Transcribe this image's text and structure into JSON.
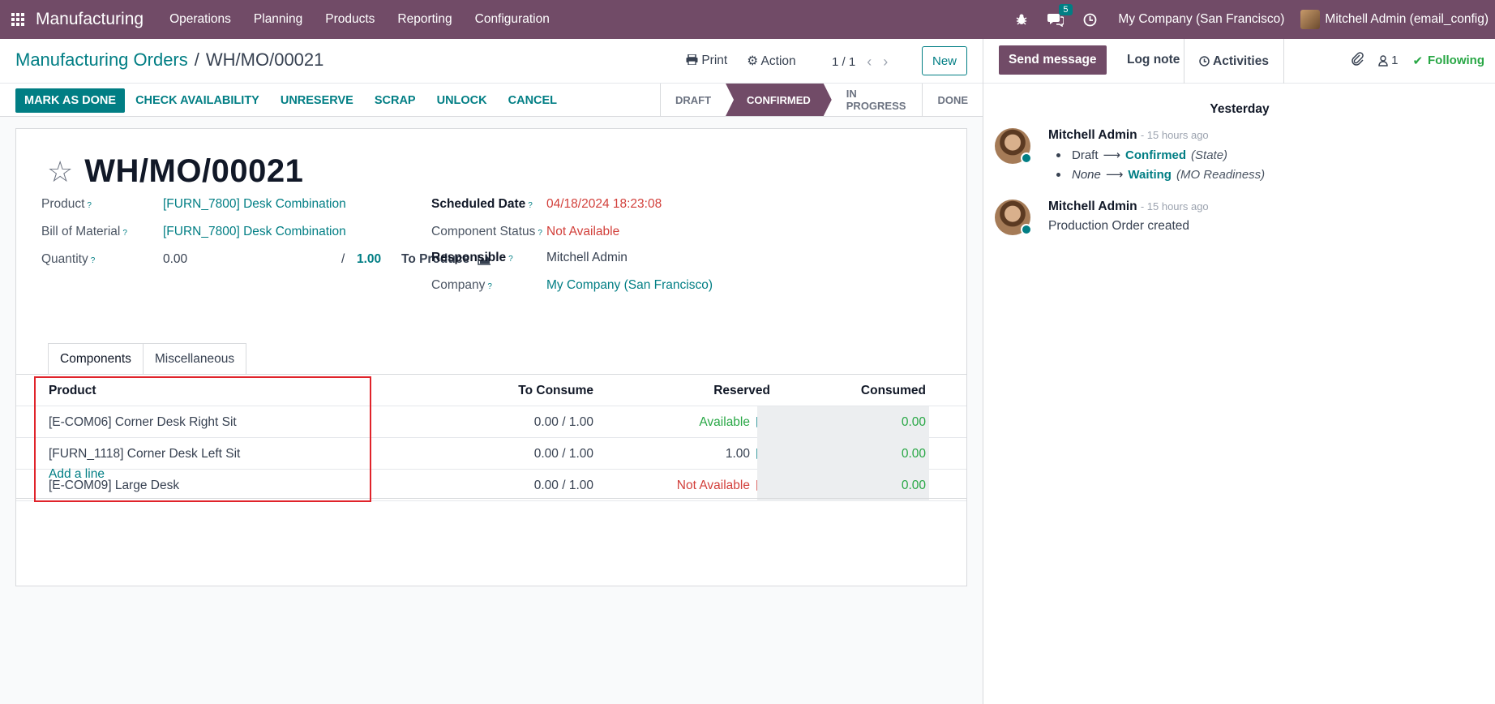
{
  "navbar": {
    "app_name": "Manufacturing",
    "menu": [
      "Operations",
      "Planning",
      "Products",
      "Reporting",
      "Configuration"
    ],
    "message_count": "5",
    "company": "My Company (San Francisco)",
    "user": "Mitchell Admin (email_config)"
  },
  "control_panel": {
    "breadcrumb_parent": "Manufacturing Orders",
    "breadcrumb_sep": "/",
    "breadcrumb_current": "WH/MO/00021",
    "print_label": "Print",
    "action_label": "Action",
    "pager": "1 / 1",
    "new_label": "New"
  },
  "statusbar": {
    "buttons": [
      "MARK AS DONE",
      "CHECK AVAILABILITY",
      "UNRESERVE",
      "SCRAP",
      "UNLOCK",
      "CANCEL"
    ],
    "stages": [
      "DRAFT",
      "CONFIRMED",
      "IN PROGRESS",
      "DONE"
    ],
    "active_stage": "CONFIRMED"
  },
  "form": {
    "title": "WH/MO/00021",
    "product_label": "Product",
    "product_value": "[FURN_7800] Desk Combination",
    "bom_label": "Bill of Material",
    "bom_value": "[FURN_7800] Desk Combination",
    "quantity_label": "Quantity",
    "quantity_value": "0.00",
    "quantity_slash": "/",
    "quantity_target": "1.00",
    "to_produce_label": "To Produce",
    "scheduled_label": "Scheduled Date",
    "scheduled_value": "04/18/2024 18:23:08",
    "component_status_label": "Component Status",
    "component_status_value": "Not Available",
    "responsible_label": "Responsible",
    "responsible_value": "Mitchell Admin",
    "company_label": "Company",
    "company_value": "My Company (San Francisco)",
    "help_mark": "?"
  },
  "tabs": [
    "Components",
    "Miscellaneous"
  ],
  "components_table": {
    "headers": [
      "Product",
      "To Consume",
      "Reserved",
      "Consumed"
    ],
    "rows": [
      {
        "product": "[E-COM06] Corner Desk Right Sit",
        "to_consume": "0.00 /  1.00",
        "reserved": "Available",
        "reserved_state": "available",
        "consumed": "0.00"
      },
      {
        "product": "[FURN_1118] Corner Desk Left Sit",
        "to_consume": "0.00 /  1.00",
        "reserved": "1.00",
        "reserved_state": "qty",
        "consumed": "0.00"
      },
      {
        "product": "[E-COM09] Large Desk",
        "to_consume": "0.00 /  1.00",
        "reserved": "Not Available",
        "reserved_state": "unavailable",
        "consumed": "0.00"
      }
    ],
    "add_line": "Add a line"
  },
  "chatter": {
    "send_message": "Send message",
    "log_note": "Log note",
    "activities": "Activities",
    "followers_count": "1",
    "following": "Following",
    "day_separator": "Yesterday",
    "messages": [
      {
        "author": "Mitchell Admin",
        "ago": "- 15 hours ago",
        "tracking": [
          {
            "old": "Draft",
            "new": "Confirmed",
            "field": "(State)"
          },
          {
            "old": "None",
            "new": "Waiting",
            "field": "(MO Readiness)"
          }
        ]
      },
      {
        "author": "Mitchell Admin",
        "ago": "- 15 hours ago",
        "text": "Production Order created"
      }
    ]
  },
  "colors": {
    "brand": "#714B67",
    "accent": "#017e84",
    "danger": "#d23f3a",
    "success": "#28a745"
  }
}
